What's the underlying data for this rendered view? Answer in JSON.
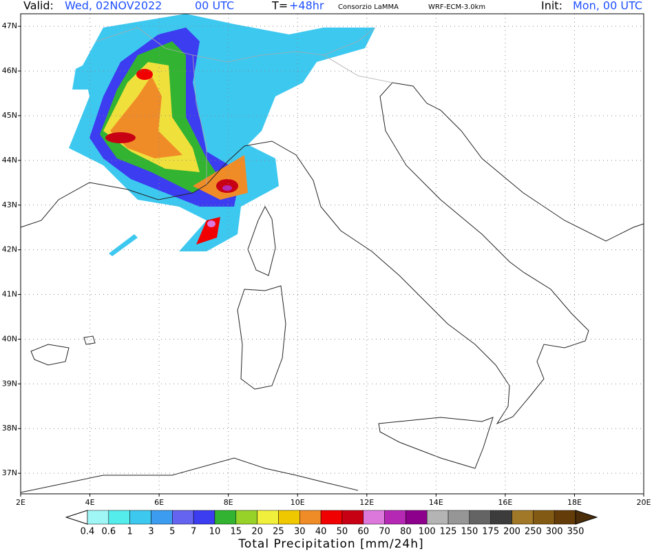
{
  "header": {
    "valid_label": "Valid:",
    "valid_value": "Wed, 02NOV2022",
    "valid_time": "00 UTC",
    "lead_label": "T=",
    "lead_value": "+48hr",
    "source": "Consorzio LaMMA",
    "model": "WRF-ECM-3.0km",
    "init_label": "Init:",
    "init_value": "Mon, 00 UTC"
  },
  "map": {
    "lon_range": [
      2,
      20
    ],
    "lat_range": [
      36.54,
      47.28
    ],
    "lon_ticks": [
      {
        "value": 2,
        "label": "2E"
      },
      {
        "value": 4,
        "label": "4E"
      },
      {
        "value": 6,
        "label": "6E"
      },
      {
        "value": 8,
        "label": "8E"
      },
      {
        "value": 10,
        "label": "10E"
      },
      {
        "value": 12,
        "label": "12E"
      },
      {
        "value": 14,
        "label": "14E"
      },
      {
        "value": 16,
        "label": "16E"
      },
      {
        "value": 18,
        "label": "18E"
      },
      {
        "value": 20,
        "label": "20E"
      }
    ],
    "lat_ticks": [
      {
        "value": 47,
        "label": "47N"
      },
      {
        "value": 46,
        "label": "46N"
      },
      {
        "value": 45,
        "label": "45N"
      },
      {
        "value": 44,
        "label": "44N"
      },
      {
        "value": 43,
        "label": "43N"
      },
      {
        "value": 42,
        "label": "42N"
      },
      {
        "value": 41,
        "label": "41N"
      },
      {
        "value": 40,
        "label": "40N"
      },
      {
        "value": 39,
        "label": "39N"
      },
      {
        "value": 38,
        "label": "38N"
      },
      {
        "value": 37,
        "label": "37N"
      }
    ]
  },
  "colorbar": {
    "title": "Total Precipitation [mm/24h]",
    "levels": [
      0.4,
      0.6,
      1,
      3,
      5,
      7,
      10,
      15,
      20,
      25,
      30,
      40,
      50,
      60,
      70,
      80,
      100,
      125,
      150,
      175,
      200,
      250,
      300,
      350
    ],
    "colors": [
      "#ffffff",
      "#a0f5f5",
      "#55ecec",
      "#3dc8f0",
      "#3c9cf0",
      "#6464f0",
      "#3c3cf0",
      "#32b432",
      "#96d228",
      "#f0f03c",
      "#f0c800",
      "#f08c28",
      "#f00000",
      "#c80014",
      "#dc78dc",
      "#b428b4",
      "#8c008c",
      "#b4b4b4",
      "#969696",
      "#646464",
      "#3c3c3c",
      "#a07828",
      "#825a14",
      "#643c0a",
      "#4b2d0a"
    ]
  }
}
